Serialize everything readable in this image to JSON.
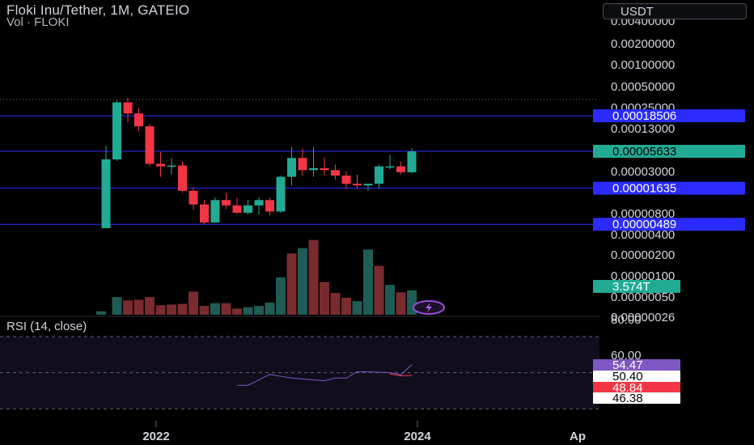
{
  "header": {
    "title": "Floki Inu/Tether, 1M, GATEIO",
    "volume_label": "Vol · FLOKI",
    "currency": "USDT"
  },
  "colors": {
    "up": "#22ab94",
    "down": "#f23645",
    "volume_up": "#1f5c55",
    "volume_down": "#7a2b30",
    "hline": "#2b2bff",
    "rsi_line": "#7e57c2",
    "rsi_band": "#120d1d",
    "axis_text": "#d1d4dc"
  },
  "chart_data": [
    {
      "type": "candlestick",
      "title": "Floki Inu/Tether, 1M, GATEIO",
      "scale": "log",
      "y_ticks": [
        "0.00400000",
        "0.00200000",
        "0.00100000",
        "0.00050000",
        "0.00025000",
        "0.00013000",
        "0.00003000",
        "0.00000800",
        "0.00000400",
        "0.00000200",
        "0.00000100",
        "0.00000050",
        "0.00000026"
      ],
      "x_ticks": [
        "2022",
        "2024",
        "Ap"
      ],
      "price_labels": [
        {
          "text": "0.00018506",
          "kind": "hline"
        },
        {
          "text": "0.00005633",
          "kind": "last"
        },
        {
          "text": "0.00001635",
          "kind": "hline"
        },
        {
          "text": "0.00000489",
          "kind": "hline"
        }
      ],
      "horizontal_lines": [
        0.00018506,
        5.633e-05,
        1.635e-05,
        4.89e-06
      ],
      "dotted_line": 0.00032,
      "candles": [
        {
          "o": 4.3e-06,
          "h": 6.8e-05,
          "l": 4.3e-06,
          "c": 4.3e-05
        },
        {
          "o": 4.3e-05,
          "h": 0.00031,
          "l": 4.1e-05,
          "c": 0.00029
        },
        {
          "o": 0.00029,
          "h": 0.00034,
          "l": 0.00015,
          "c": 0.0002
        },
        {
          "o": 0.0002,
          "h": 0.00024,
          "l": 0.00011,
          "c": 0.00013
        },
        {
          "o": 0.00013,
          "h": 0.00014,
          "l": 3.4e-05,
          "c": 3.7e-05
        },
        {
          "o": 3.7e-05,
          "h": 5.5e-05,
          "l": 2.4e-05,
          "c": 3.4e-05
        },
        {
          "o": 3.4e-05,
          "h": 4.5e-05,
          "l": 2.6e-05,
          "c": 3.5e-05
        },
        {
          "o": 3.5e-05,
          "h": 4e-05,
          "l": 1.4e-05,
          "c": 1.5e-05
        },
        {
          "o": 1.5e-05,
          "h": 1.7e-05,
          "l": 8e-06,
          "c": 9.5e-06
        },
        {
          "o": 9.5e-06,
          "h": 1.1e-05,
          "l": 4.9e-06,
          "c": 5.2e-06
        },
        {
          "o": 5.2e-06,
          "h": 1.2e-05,
          "l": 5.1e-06,
          "c": 1.1e-05
        },
        {
          "o": 1.1e-05,
          "h": 1.4e-05,
          "l": 8.2e-06,
          "c": 9.2e-06
        },
        {
          "o": 9.2e-06,
          "h": 1.2e-05,
          "l": 6.9e-06,
          "c": 7.2e-06
        },
        {
          "o": 7.2e-06,
          "h": 1.1e-05,
          "l": 6.8e-06,
          "c": 9.2e-06
        },
        {
          "o": 9.2e-06,
          "h": 1.2e-05,
          "l": 6.8e-06,
          "c": 1.1e-05
        },
        {
          "o": 1.1e-05,
          "h": 1.2e-05,
          "l": 6.6e-06,
          "c": 7.5e-06
        },
        {
          "o": 7.5e-06,
          "h": 2.5e-05,
          "l": 7.2e-06,
          "c": 2.4e-05
        },
        {
          "o": 2.4e-05,
          "h": 6.5e-05,
          "l": 1.8e-05,
          "c": 4.5e-05
        },
        {
          "o": 4.5e-05,
          "h": 6.2e-05,
          "l": 2.5e-05,
          "c": 3e-05
        },
        {
          "o": 3e-05,
          "h": 6.5e-05,
          "l": 2.4e-05,
          "c": 3.2e-05
        },
        {
          "o": 3.2e-05,
          "h": 4.6e-05,
          "l": 2.5e-05,
          "c": 3e-05
        },
        {
          "o": 3e-05,
          "h": 3.6e-05,
          "l": 2.2e-05,
          "c": 2.5e-05
        },
        {
          "o": 2.5e-05,
          "h": 2.9e-05,
          "l": 1.6e-05,
          "c": 1.9e-05
        },
        {
          "o": 1.9e-05,
          "h": 2.6e-05,
          "l": 1.6e-05,
          "c": 1.8e-05
        },
        {
          "o": 1.8e-05,
          "h": 1.9e-05,
          "l": 1.5e-05,
          "c": 1.9e-05
        },
        {
          "o": 1.9e-05,
          "h": 3.6e-05,
          "l": 1.6e-05,
          "c": 3.4e-05
        },
        {
          "o": 3.4e-05,
          "h": 5e-05,
          "l": 3.1e-05,
          "c": 3.4e-05
        },
        {
          "o": 3.4e-05,
          "h": 4e-05,
          "l": 2.6e-05,
          "c": 2.8e-05
        },
        {
          "o": 2.8e-05,
          "h": 6.3e-05,
          "l": 2.7e-05,
          "c": 5.6e-05
        }
      ],
      "volume": {
        "last_label": "3.574T",
        "bars": [
          {
            "v": 0.5,
            "up": true
          },
          {
            "v": 2.6,
            "up": true
          },
          {
            "v": 2.1,
            "up": false
          },
          {
            "v": 2.2,
            "up": false
          },
          {
            "v": 2.6,
            "up": false
          },
          {
            "v": 1.4,
            "up": false
          },
          {
            "v": 1.5,
            "up": false
          },
          {
            "v": 1.6,
            "up": false
          },
          {
            "v": 3.4,
            "up": false
          },
          {
            "v": 1.3,
            "up": false
          },
          {
            "v": 1.7,
            "up": true
          },
          {
            "v": 1.7,
            "up": false
          },
          {
            "v": 0.9,
            "up": false
          },
          {
            "v": 1.1,
            "up": true
          },
          {
            "v": 1.3,
            "up": true
          },
          {
            "v": 1.8,
            "up": true
          },
          {
            "v": 5.5,
            "up": true
          },
          {
            "v": 9.0,
            "up": false
          },
          {
            "v": 9.8,
            "up": true
          },
          {
            "v": 11.0,
            "up": false
          },
          {
            "v": 4.8,
            "up": false
          },
          {
            "v": 3.2,
            "up": false
          },
          {
            "v": 2.5,
            "up": false
          },
          {
            "v": 2.0,
            "up": true
          },
          {
            "v": 9.6,
            "up": true
          },
          {
            "v": 7.2,
            "up": false
          },
          {
            "v": 4.4,
            "up": true
          },
          {
            "v": 3.3,
            "up": false
          },
          {
            "v": 3.6,
            "up": true
          }
        ]
      }
    },
    {
      "type": "line",
      "title": "RSI (14, close)",
      "y_ticks": [
        "80.00",
        "60.00"
      ],
      "band": [
        30,
        70
      ],
      "mid": 50,
      "values": [
        43,
        43,
        46,
        49,
        48,
        47,
        46.5,
        46,
        45.5,
        47,
        47,
        50.5,
        50.5,
        50.2,
        50,
        48.8,
        54.47
      ],
      "value_labels": [
        {
          "text": "54.47",
          "style": "purple"
        },
        {
          "text": "50.40",
          "style": "white"
        },
        {
          "text": "48.84",
          "style": "red"
        },
        {
          "text": "46.38",
          "style": "white"
        }
      ]
    }
  ]
}
